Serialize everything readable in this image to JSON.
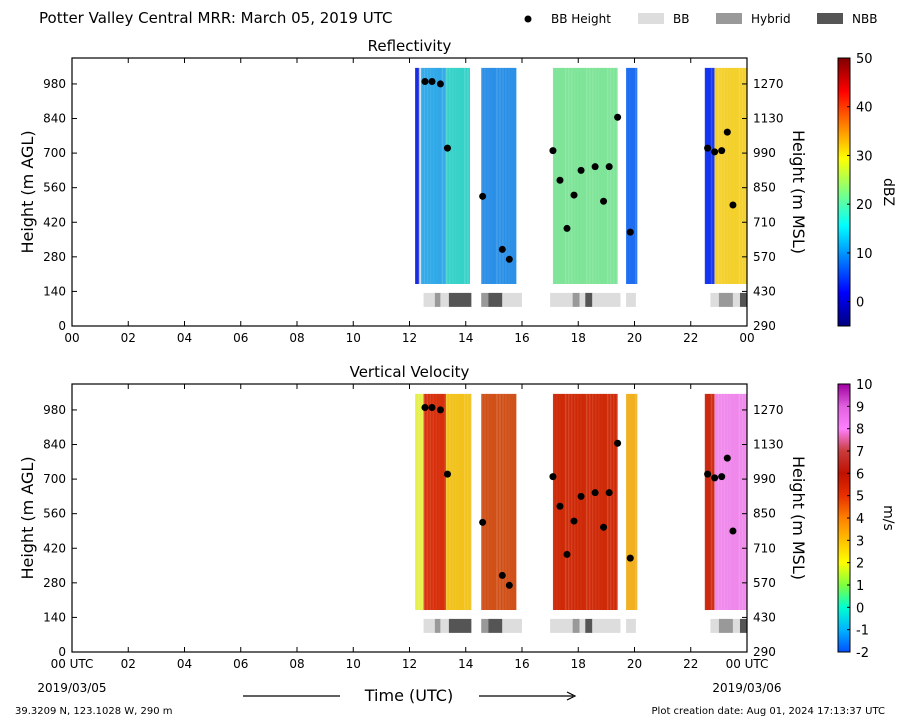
{
  "title": "Potter Valley Central MRR:  March 05, 2019 UTC",
  "legend": [
    {
      "label": "BB Height",
      "kind": "dot",
      "color": "#000000"
    },
    {
      "label": "BB",
      "kind": "box",
      "color": "#dddddd"
    },
    {
      "label": "Hybrid",
      "kind": "box",
      "color": "#999999"
    },
    {
      "label": "NBB",
      "kind": "box",
      "color": "#555555"
    }
  ],
  "xaxis_label": "Time (UTC)",
  "start_date": "2019/03/05",
  "end_date": "2019/03/06",
  "footer_left": "39.3209 N, 123.1028 W, 290 m",
  "footer_right": "Plot creation date: Aug 01, 2024 17:13:37 UTC",
  "chart_data": [
    {
      "type": "heatmap",
      "title": "Reflectivity",
      "xlabel": "",
      "ylabel": "Height (m AGL)",
      "ylabel_right": "Height (m MSL)",
      "colorbar_label": "dBZ",
      "x_ticks": [
        "00",
        "02",
        "04",
        "06",
        "08",
        "10",
        "12",
        "14",
        "16",
        "18",
        "20",
        "22",
        "00"
      ],
      "xlim": [
        0,
        24
      ],
      "y_ticks": [
        0,
        140,
        280,
        420,
        560,
        700,
        840,
        980
      ],
      "y_ticks_right": [
        290,
        430,
        570,
        710,
        850,
        990,
        1130,
        1270
      ],
      "ylim": [
        0,
        1085
      ],
      "colorbar_ticks": [
        0,
        10,
        20,
        30,
        40,
        50
      ],
      "colorbar_range": [
        -5,
        50
      ],
      "colorscale": [
        "#00007f",
        "#0000ff",
        "#007fff",
        "#00ffff",
        "#7fff7f",
        "#ffff00",
        "#ff7f00",
        "#ff0000",
        "#7f0000"
      ],
      "data_segments": [
        {
          "start": 12.2,
          "end": 12.35,
          "color": "#1a2ce0"
        },
        {
          "start": 12.4,
          "end": 13.3,
          "color": "#30a8e8"
        },
        {
          "start": 13.3,
          "end": 14.15,
          "color": "#35d2c8"
        },
        {
          "start": 14.55,
          "end": 15.8,
          "color": "#2a8fe6"
        },
        {
          "start": 17.1,
          "end": 19.4,
          "color": "#7ee497"
        },
        {
          "start": 19.7,
          "end": 20.1,
          "color": "#1e6df0"
        },
        {
          "start": 22.5,
          "end": 22.85,
          "color": "#1434f0"
        },
        {
          "start": 22.85,
          "end": 24.0,
          "color": "#f4d02a"
        }
      ]
    },
    {
      "type": "heatmap",
      "title": "Vertical Velocity",
      "xlabel": "Time (UTC)",
      "ylabel": "Height (m AGL)",
      "ylabel_right": "Height (m MSL)",
      "colorbar_label": "m/s",
      "x_ticks": [
        "00 UTC",
        "02",
        "04",
        "06",
        "08",
        "10",
        "12",
        "14",
        "16",
        "18",
        "20",
        "22",
        "00 UTC"
      ],
      "xlim": [
        0,
        24
      ],
      "y_ticks": [
        0,
        140,
        280,
        420,
        560,
        700,
        840,
        980
      ],
      "y_ticks_right": [
        290,
        430,
        570,
        710,
        850,
        990,
        1130,
        1270
      ],
      "ylim": [
        0,
        1085
      ],
      "colorbar_ticks": [
        -2,
        -1,
        0,
        1,
        2,
        3,
        4,
        5,
        6,
        7,
        8,
        9,
        10
      ],
      "colorbar_range": [
        -2,
        10
      ],
      "colorscale": [
        "#0050ff",
        "#00b4ff",
        "#00ffd0",
        "#7fff3f",
        "#ffff00",
        "#ffc000",
        "#ff8000",
        "#e83000",
        "#c01000",
        "#c83c3c",
        "#ff80ff",
        "#e060e0",
        "#a000a0"
      ],
      "data_segments": [
        {
          "start": 12.2,
          "end": 12.5,
          "color": "#e6f04a"
        },
        {
          "start": 12.5,
          "end": 13.3,
          "color": "#d7300c"
        },
        {
          "start": 13.3,
          "end": 14.2,
          "color": "#f2c21a"
        },
        {
          "start": 14.55,
          "end": 15.8,
          "color": "#d05018"
        },
        {
          "start": 17.1,
          "end": 19.4,
          "color": "#cf2a08"
        },
        {
          "start": 19.7,
          "end": 20.1,
          "color": "#f0b020"
        },
        {
          "start": 22.5,
          "end": 22.85,
          "color": "#cc2a10"
        },
        {
          "start": 22.85,
          "end": 24.0,
          "color": "#f088ec"
        }
      ]
    }
  ],
  "bb_height_points": [
    {
      "t": 12.55,
      "h": 990
    },
    {
      "t": 12.8,
      "h": 990
    },
    {
      "t": 13.1,
      "h": 980
    },
    {
      "t": 13.35,
      "h": 720
    },
    {
      "t": 14.6,
      "h": 525
    },
    {
      "t": 15.3,
      "h": 310
    },
    {
      "t": 15.55,
      "h": 270
    },
    {
      "t": 17.1,
      "h": 710
    },
    {
      "t": 17.35,
      "h": 590
    },
    {
      "t": 17.6,
      "h": 395
    },
    {
      "t": 17.85,
      "h": 530
    },
    {
      "t": 18.1,
      "h": 630
    },
    {
      "t": 18.6,
      "h": 645
    },
    {
      "t": 18.9,
      "h": 505
    },
    {
      "t": 19.1,
      "h": 645
    },
    {
      "t": 19.4,
      "h": 845
    },
    {
      "t": 19.85,
      "h": 380
    },
    {
      "t": 22.6,
      "h": 720
    },
    {
      "t": 22.85,
      "h": 705
    },
    {
      "t": 23.1,
      "h": 710
    },
    {
      "t": 23.3,
      "h": 785
    },
    {
      "t": 23.5,
      "h": 490
    }
  ],
  "bb_type_bar": [
    {
      "start": 12.5,
      "end": 12.9,
      "type": "BB"
    },
    {
      "start": 12.9,
      "end": 13.1,
      "type": "Hybrid"
    },
    {
      "start": 13.1,
      "end": 13.4,
      "type": "BB"
    },
    {
      "start": 13.4,
      "end": 14.2,
      "type": "NBB"
    },
    {
      "start": 14.55,
      "end": 14.8,
      "type": "Hybrid"
    },
    {
      "start": 14.8,
      "end": 15.3,
      "type": "NBB"
    },
    {
      "start": 15.3,
      "end": 16.0,
      "type": "BB"
    },
    {
      "start": 17.0,
      "end": 17.8,
      "type": "BB"
    },
    {
      "start": 17.8,
      "end": 18.05,
      "type": "Hybrid"
    },
    {
      "start": 18.05,
      "end": 18.25,
      "type": "BB"
    },
    {
      "start": 18.25,
      "end": 18.5,
      "type": "NBB"
    },
    {
      "start": 18.5,
      "end": 19.5,
      "type": "BB"
    },
    {
      "start": 19.7,
      "end": 20.05,
      "type": "BB"
    },
    {
      "start": 22.7,
      "end": 23.0,
      "type": "BB"
    },
    {
      "start": 23.0,
      "end": 23.5,
      "type": "Hybrid"
    },
    {
      "start": 23.5,
      "end": 23.75,
      "type": "BB"
    },
    {
      "start": 23.75,
      "end": 24.0,
      "type": "NBB"
    }
  ]
}
